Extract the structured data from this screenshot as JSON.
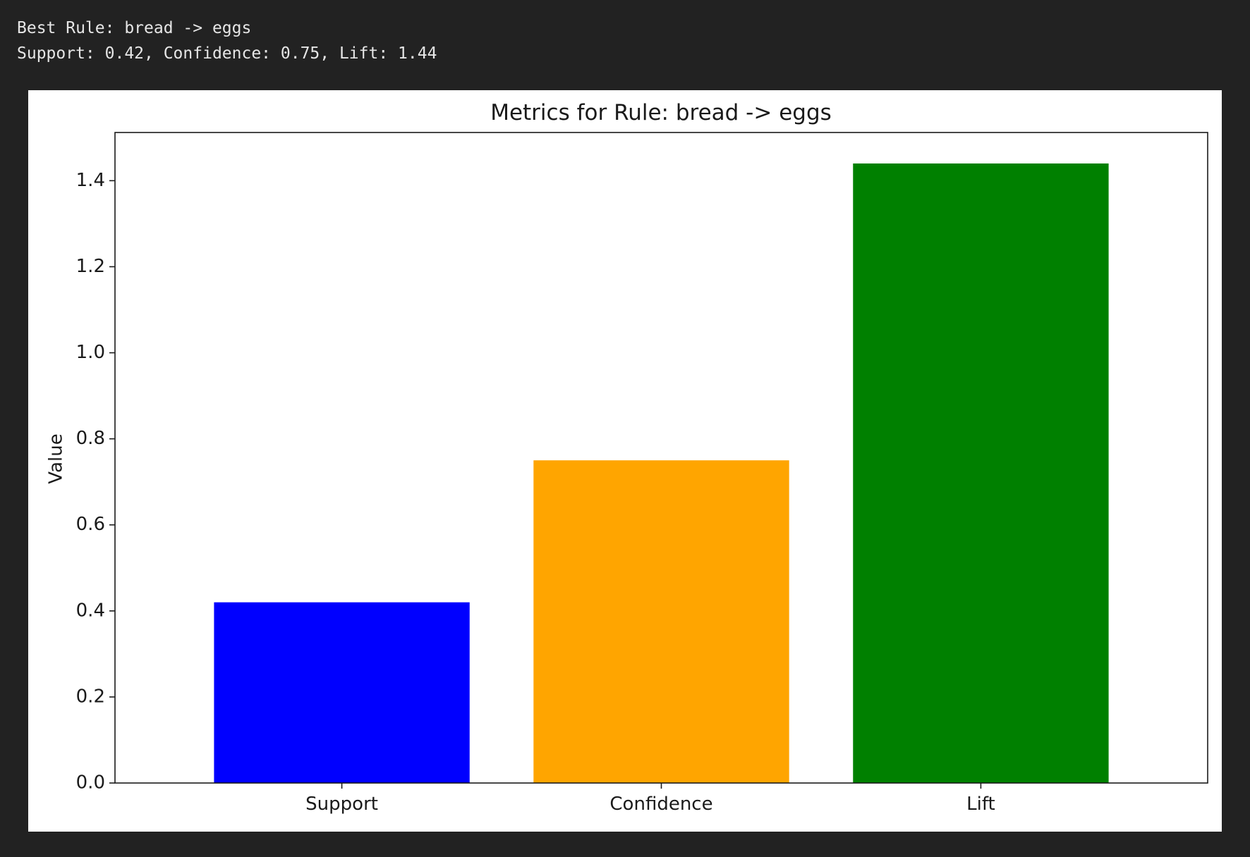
{
  "output": {
    "line1": "Best Rule: bread -> eggs",
    "line2": "Support: 0.42, Confidence: 0.75, Lift: 1.44"
  },
  "chart_data": {
    "type": "bar",
    "title": "Metrics for Rule: bread -> eggs",
    "xlabel": "",
    "ylabel": "Value",
    "categories": [
      "Support",
      "Confidence",
      "Lift"
    ],
    "values": [
      0.42,
      0.75,
      1.44
    ],
    "colors": [
      "#0000ff",
      "#ffa500",
      "#008000"
    ],
    "ylim": [
      0,
      1.512
    ],
    "yticks": [
      0.0,
      0.2,
      0.4,
      0.6,
      0.8,
      1.0,
      1.2,
      1.4
    ],
    "ytick_labels": [
      "0.0",
      "0.2",
      "0.4",
      "0.6",
      "0.8",
      "1.0",
      "1.2",
      "1.4"
    ],
    "grid": false,
    "legend": "none"
  }
}
